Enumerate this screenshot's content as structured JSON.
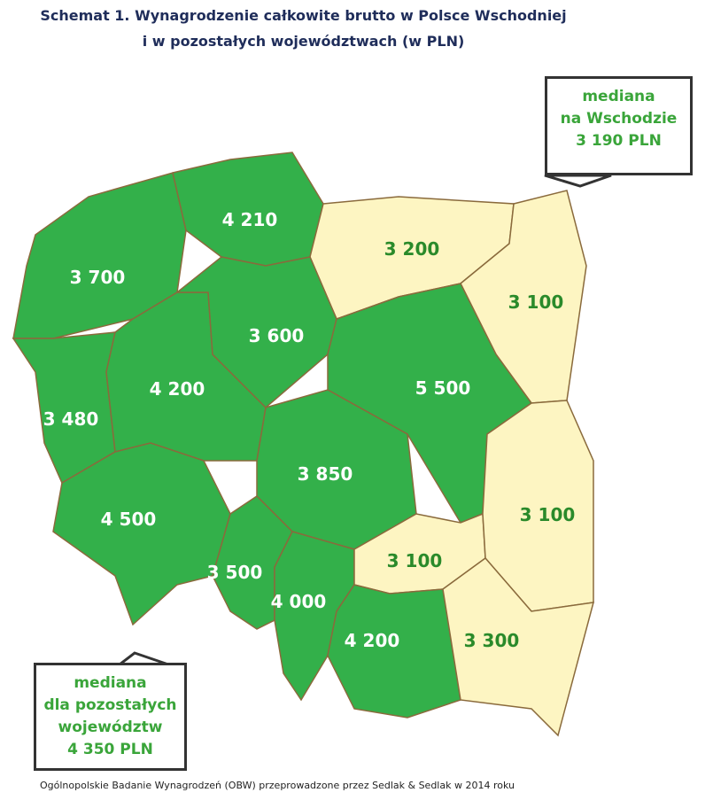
{
  "title_line1": "Schemat 1. Wynagrodzenie całkowite brutto w Polsce Wschodniej",
  "title_line2": "i w pozostałych województwach (w PLN)",
  "colors": {
    "east": "#fdf5c2",
    "other": "#33b04a",
    "border": "#8a6a3c",
    "callout_text": "#3aa53a"
  },
  "regions": [
    {
      "value": "3 700",
      "group": "other"
    },
    {
      "value": "4 210",
      "group": "other"
    },
    {
      "value": "3 200",
      "group": "east"
    },
    {
      "value": "3 100",
      "group": "east"
    },
    {
      "value": "3 480",
      "group": "other"
    },
    {
      "value": "4 200",
      "group": "other"
    },
    {
      "value": "3 600",
      "group": "other"
    },
    {
      "value": "5 500",
      "group": "other"
    },
    {
      "value": "3 850",
      "group": "other"
    },
    {
      "value": "4 500",
      "group": "other"
    },
    {
      "value": "3 500",
      "group": "other"
    },
    {
      "value": "4 000",
      "group": "other"
    },
    {
      "value": "3 100",
      "group": "east"
    },
    {
      "value": "4 200",
      "group": "other"
    },
    {
      "value": "3 100",
      "group": "east"
    },
    {
      "value": "3 300",
      "group": "east"
    }
  ],
  "callout_east": {
    "line1": "mediana",
    "line2": "na Wschodzie",
    "line3": "3 190 PLN"
  },
  "callout_other": {
    "line1": "mediana",
    "line2": "dla pozostałych",
    "line3": "województw",
    "line4": "4 350 PLN"
  },
  "footer": "Ogólnopolskie Badanie Wynagrodzeń (OBW) przeprowadzone przez Sedlak & Sedlak w 2014 roku"
}
